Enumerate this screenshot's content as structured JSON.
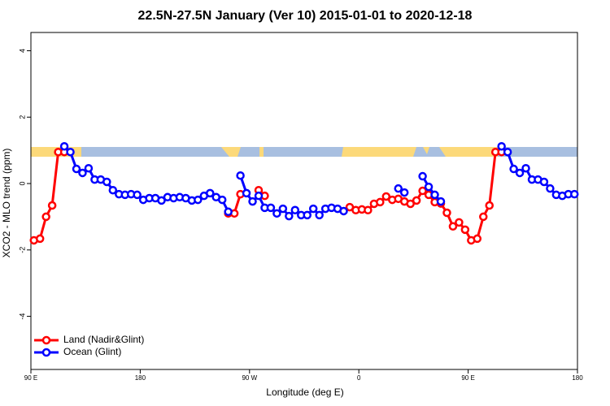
{
  "chart_data": {
    "type": "line",
    "title": "22.5N-27.5N January (Ver 10)   2015-01-01 to 2020-12-18",
    "x_label": "Longitude (deg E)",
    "y_label": "XCO2 - MLO trend (ppm)",
    "x": [
      92.5,
      97.5,
      102.5,
      107.5,
      112.5,
      117.5,
      122.5,
      127.5,
      132.5,
      137.5,
      142.5,
      147.5,
      152.5,
      157.5,
      162.5,
      167.5,
      172.5,
      177.5,
      182.5,
      187.5,
      192.5,
      197.5,
      202.5,
      207.5,
      212.5,
      217.5,
      222.5,
      227.5,
      232.5,
      237.5,
      242.5,
      247.5,
      252.5,
      257.5,
      262.5,
      267.5,
      272.5,
      277.5,
      282.5,
      287.5,
      292.5,
      297.5,
      302.5,
      307.5,
      312.5,
      317.5,
      322.5,
      327.5,
      332.5,
      337.5,
      342.5,
      347.5,
      352.5,
      357.5,
      362.5,
      367.5,
      372.5,
      377.5,
      382.5,
      387.5,
      392.5,
      397.5,
      402.5,
      407.5,
      412.5,
      417.5,
      422.5,
      427.5,
      432.5,
      437.5,
      442.5,
      447.5,
      452.5,
      457.5,
      462.5,
      467.5,
      472.5,
      477.5,
      482.5,
      487.5,
      492.5,
      497.5,
      502.5,
      507.5,
      512.5,
      517.5,
      522.5,
      527.5,
      532.5,
      537.5
    ],
    "series": [
      {
        "name": "Land (Nadir&Glint)",
        "color": "#ff0000",
        "values": [
          -1.71,
          -1.66,
          -1.0,
          -0.66,
          0.95,
          0.95,
          null,
          null,
          null,
          null,
          null,
          null,
          null,
          null,
          null,
          null,
          null,
          null,
          null,
          null,
          null,
          null,
          null,
          null,
          null,
          null,
          null,
          null,
          null,
          null,
          null,
          null,
          -0.9,
          -0.9,
          -0.32,
          null,
          null,
          -0.2,
          -0.37,
          null,
          null,
          null,
          null,
          null,
          null,
          null,
          null,
          null,
          null,
          null,
          null,
          null,
          -0.71,
          -0.8,
          -0.78,
          -0.8,
          -0.61,
          -0.56,
          -0.39,
          -0.49,
          -0.46,
          -0.54,
          -0.61,
          -0.51,
          -0.22,
          -0.34,
          -0.56,
          -0.6,
          -0.88,
          -1.29,
          -1.17,
          -1.39,
          -1.71,
          -1.66,
          -1.0,
          -0.66,
          0.95,
          0.95,
          null,
          null,
          null,
          null,
          null,
          null,
          null,
          null,
          null,
          null,
          null,
          null
        ]
      },
      {
        "name": "Ocean (Glint)",
        "color": "#0000ff",
        "values": [
          null,
          null,
          null,
          null,
          null,
          1.12,
          0.95,
          0.44,
          0.32,
          0.46,
          0.12,
          0.12,
          0.05,
          -0.2,
          -0.32,
          -0.34,
          -0.32,
          -0.34,
          -0.49,
          -0.44,
          -0.44,
          -0.51,
          -0.41,
          -0.44,
          -0.41,
          -0.44,
          -0.51,
          -0.49,
          -0.37,
          -0.29,
          -0.41,
          -0.49,
          -0.85,
          null,
          0.24,
          -0.29,
          -0.54,
          -0.37,
          -0.73,
          -0.73,
          -0.9,
          -0.76,
          -0.98,
          -0.8,
          -0.95,
          -0.95,
          -0.76,
          -0.95,
          -0.76,
          -0.73,
          -0.76,
          -0.83,
          null,
          null,
          null,
          null,
          null,
          null,
          null,
          null,
          -0.15,
          -0.27,
          null,
          null,
          0.22,
          -0.1,
          -0.34,
          -0.54,
          null,
          null,
          null,
          null,
          null,
          null,
          null,
          null,
          null,
          1.12,
          0.95,
          0.44,
          0.32,
          0.46,
          0.12,
          0.12,
          0.05,
          -0.15,
          -0.34,
          -0.37,
          -0.32,
          -0.32
        ]
      }
    ],
    "xlim": [
      90,
      540
    ],
    "xticks": [
      {
        "value": 90,
        "label": "90 E"
      },
      180,
      {
        "value": 270,
        "label": "90 W"
      },
      {
        "value": 360,
        "label": "0"
      },
      {
        "value": 450,
        "label": "90 E"
      },
      {
        "value": 540,
        "label": "180"
      }
    ],
    "ylim": [
      -5.6,
      4.55
    ],
    "yticks": [
      -4,
      -2,
      0,
      2,
      4
    ],
    "legend": "bottom-left"
  }
}
